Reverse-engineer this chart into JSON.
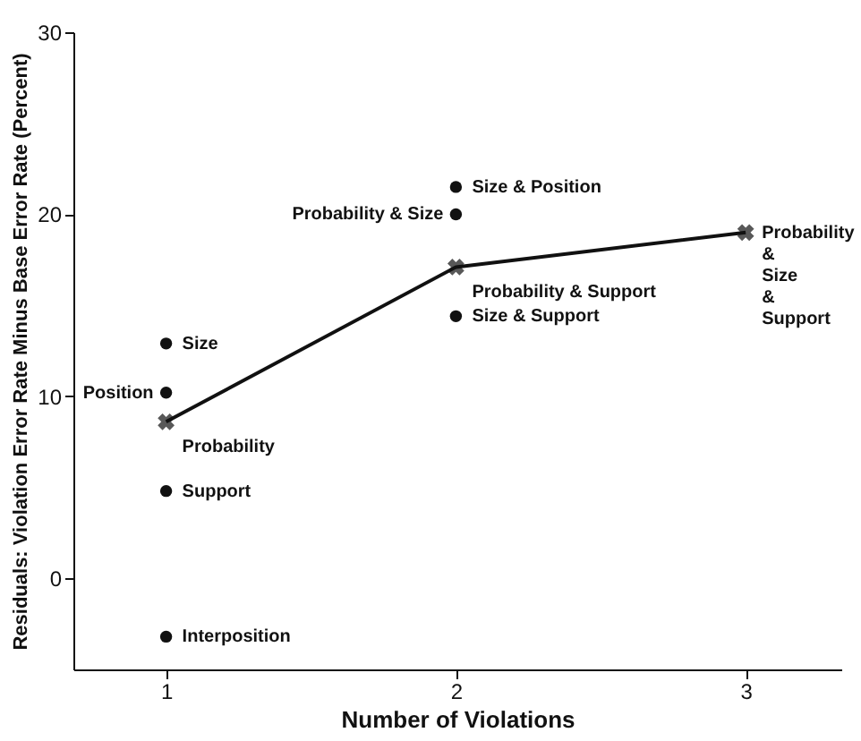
{
  "chart_data": {
    "type": "scatter",
    "xlabel": "Number of Violations",
    "ylabel": "Residuals: Violation Error Rate Minus Base Error Rate (Percent)",
    "xlim": [
      0.68,
      3.33
    ],
    "xticks": [
      1,
      2,
      3
    ],
    "ylim": [
      -5,
      30
    ],
    "yticks": [
      0,
      10,
      20,
      30
    ],
    "grid": false,
    "series": [
      {
        "color": "#111111",
        "marker": "circle",
        "x": [
          1,
          1,
          1,
          1,
          2,
          2,
          2
        ],
        "values": [
          12.9,
          10.2,
          4.8,
          -3.2,
          21.5,
          20.0,
          14.4
        ]
      },
      {
        "type": "line",
        "color": "#111111",
        "marker": "cross",
        "line_style": "solid",
        "x": [
          1,
          2,
          3
        ],
        "values": [
          8.6,
          17.1,
          19.0
        ]
      }
    ],
    "annotations": [
      {
        "text": "Size",
        "x": 1,
        "y": 12.9
      },
      {
        "text": "Position",
        "x": 1,
        "y": 10.2
      },
      {
        "text": "Probability",
        "x": 1,
        "y": 8.6
      },
      {
        "text": "Support",
        "x": 1,
        "y": 4.8
      },
      {
        "text": "Interposition",
        "x": 1,
        "y": -3.2
      },
      {
        "text": "Size & Position",
        "x": 2,
        "y": 21.5
      },
      {
        "text": "Probability & Size",
        "x": 2,
        "y": 20.0
      },
      {
        "text": "Probability & Support",
        "x": 2,
        "y": 17.1
      },
      {
        "text": "Size & Support",
        "x": 2,
        "y": 14.4
      },
      {
        "text": "Probability\n&\nSize\n&\nSupport",
        "x": 3,
        "y": 19.0
      }
    ]
  }
}
